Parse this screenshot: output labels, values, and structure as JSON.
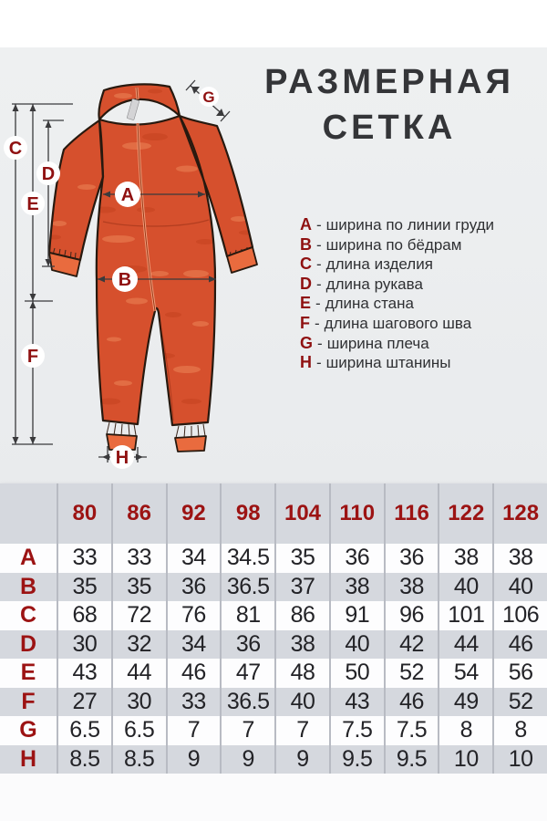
{
  "title": {
    "line1": "РАЗМЕРНАЯ",
    "line2": "СЕТКА"
  },
  "legend": {
    "separator": "-",
    "items": [
      {
        "letter": "A",
        "desc": "ширина по линии груди"
      },
      {
        "letter": "B",
        "desc": "ширина по бёдрам"
      },
      {
        "letter": "C",
        "desc": "длина изделия"
      },
      {
        "letter": "D",
        "desc": "длина рукава"
      },
      {
        "letter": "E",
        "desc": "длина стана"
      },
      {
        "letter": "F",
        "desc": "длина шагового шва"
      },
      {
        "letter": "G",
        "desc": "ширина плеча"
      },
      {
        "letter": "H",
        "desc": "ширина штанины"
      }
    ]
  },
  "diagram": {
    "markers": [
      "A",
      "B",
      "C",
      "D",
      "E",
      "F",
      "G",
      "H"
    ]
  },
  "chart_data": {
    "type": "table",
    "title": "РАЗМЕРНАЯ СЕТКА",
    "columns": [
      "80",
      "86",
      "92",
      "98",
      "104",
      "110",
      "116",
      "122",
      "128"
    ],
    "rows": [
      {
        "label": "A",
        "values": [
          33,
          33,
          34,
          34.5,
          35,
          36,
          36,
          38,
          38
        ]
      },
      {
        "label": "B",
        "values": [
          35,
          35,
          36,
          36.5,
          37,
          38,
          38,
          40,
          40
        ]
      },
      {
        "label": "C",
        "values": [
          68,
          72,
          76,
          81,
          86,
          91,
          96,
          101,
          106
        ]
      },
      {
        "label": "D",
        "values": [
          30,
          32,
          34,
          36,
          38,
          40,
          42,
          44,
          46
        ]
      },
      {
        "label": "E",
        "values": [
          43,
          44,
          46,
          47,
          48,
          50,
          52,
          54,
          56
        ]
      },
      {
        "label": "F",
        "values": [
          27,
          30,
          33,
          36.5,
          40,
          43,
          46,
          49,
          52
        ]
      },
      {
        "label": "G",
        "values": [
          6.5,
          6.5,
          7,
          7,
          7,
          7.5,
          7.5,
          8,
          8
        ]
      },
      {
        "label": "H",
        "values": [
          8.5,
          8.5,
          9,
          9,
          9,
          9.5,
          9.5,
          10,
          10
        ]
      }
    ]
  },
  "colors": {
    "accent_red": "#9c1313",
    "suit_orange": "#d6502d",
    "suit_light_patch": "#ee8a5c",
    "suit_dark_patch": "#c23e1c",
    "cuff_orange": "#e96b3e",
    "row_gray": "#d5d8de",
    "row_white": "#fdfdfe",
    "divider_gray": "#b8bbc3",
    "title_gray": "#343538"
  }
}
